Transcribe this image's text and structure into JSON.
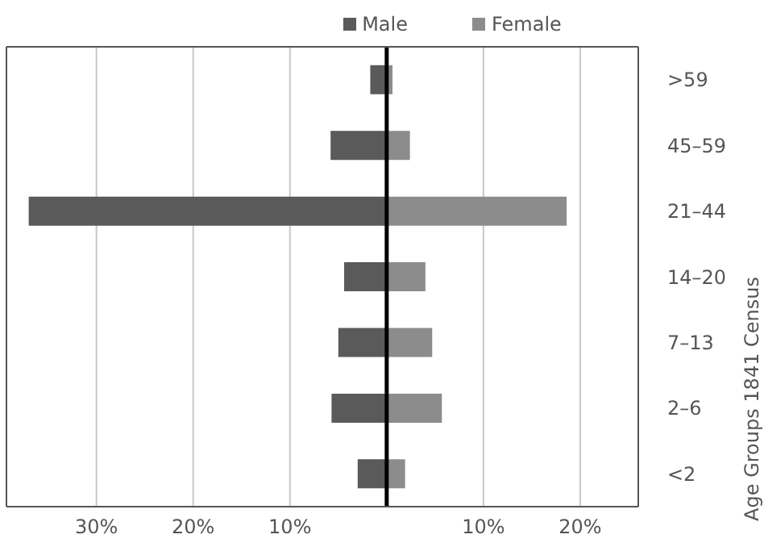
{
  "chart_data": {
    "type": "bar",
    "orientation": "horizontal",
    "stacked": true,
    "ylabel": "Age Groups 1841 Census",
    "categories": [
      ">59",
      "45–59",
      "21–44",
      "14–20",
      "7–13",
      "2–6",
      "<2"
    ],
    "series": [
      {
        "name": "Male",
        "color": "#5a5a5a",
        "values": [
          -1.7,
          -5.8,
          -37.0,
          -4.4,
          -5.0,
          -5.7,
          -3.0
        ]
      },
      {
        "name": "Female",
        "color": "#8c8c8c",
        "values": [
          0.6,
          2.4,
          18.6,
          4.0,
          4.7,
          5.7,
          1.9
        ]
      }
    ],
    "xlim": [
      -39.3,
      26
    ],
    "xticks": [
      {
        "value": -30,
        "label": "30%"
      },
      {
        "value": -20,
        "label": "20%"
      },
      {
        "value": -10,
        "label": "10%"
      },
      {
        "value": 10,
        "label": "10%"
      },
      {
        "value": 20,
        "label": "20%"
      }
    ],
    "ref_lines": [
      {
        "axis": "x",
        "value": 0,
        "label": null,
        "color": "#000000"
      }
    ],
    "grid": "x",
    "legend": "top"
  }
}
